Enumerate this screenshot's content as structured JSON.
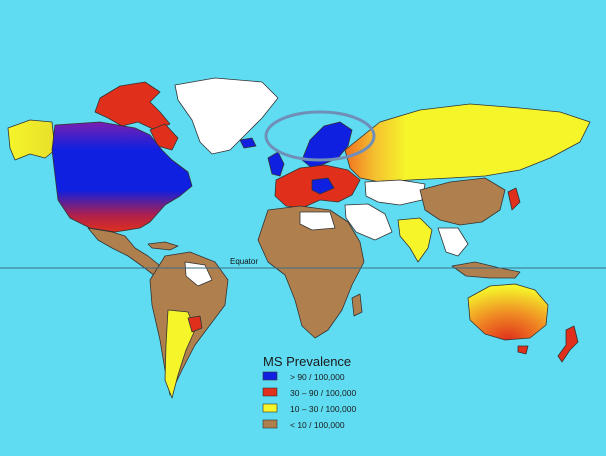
{
  "map": {
    "equator_label": "Equator",
    "highlight_region": "Scandinavia",
    "colors": {
      "ocean": "#5fdcf2",
      "very_high": "#1020e0",
      "high": "#e0301c",
      "medium": "#f5f52a",
      "low": "#b07f4e",
      "no_data": "#ffffff",
      "highlight_ring": "#6f8fb8"
    }
  },
  "legend": {
    "title": "MS Prevalence",
    "items": [
      {
        "label": "> 90 / 100,000",
        "color": "#1020e0"
      },
      {
        "label": "30 – 90 / 100,000",
        "color": "#e0301c"
      },
      {
        "label": "10 – 30 / 100,000",
        "color": "#f5f52a"
      },
      {
        "label": "< 10 / 100,000",
        "color": "#b07f4e"
      }
    ]
  }
}
